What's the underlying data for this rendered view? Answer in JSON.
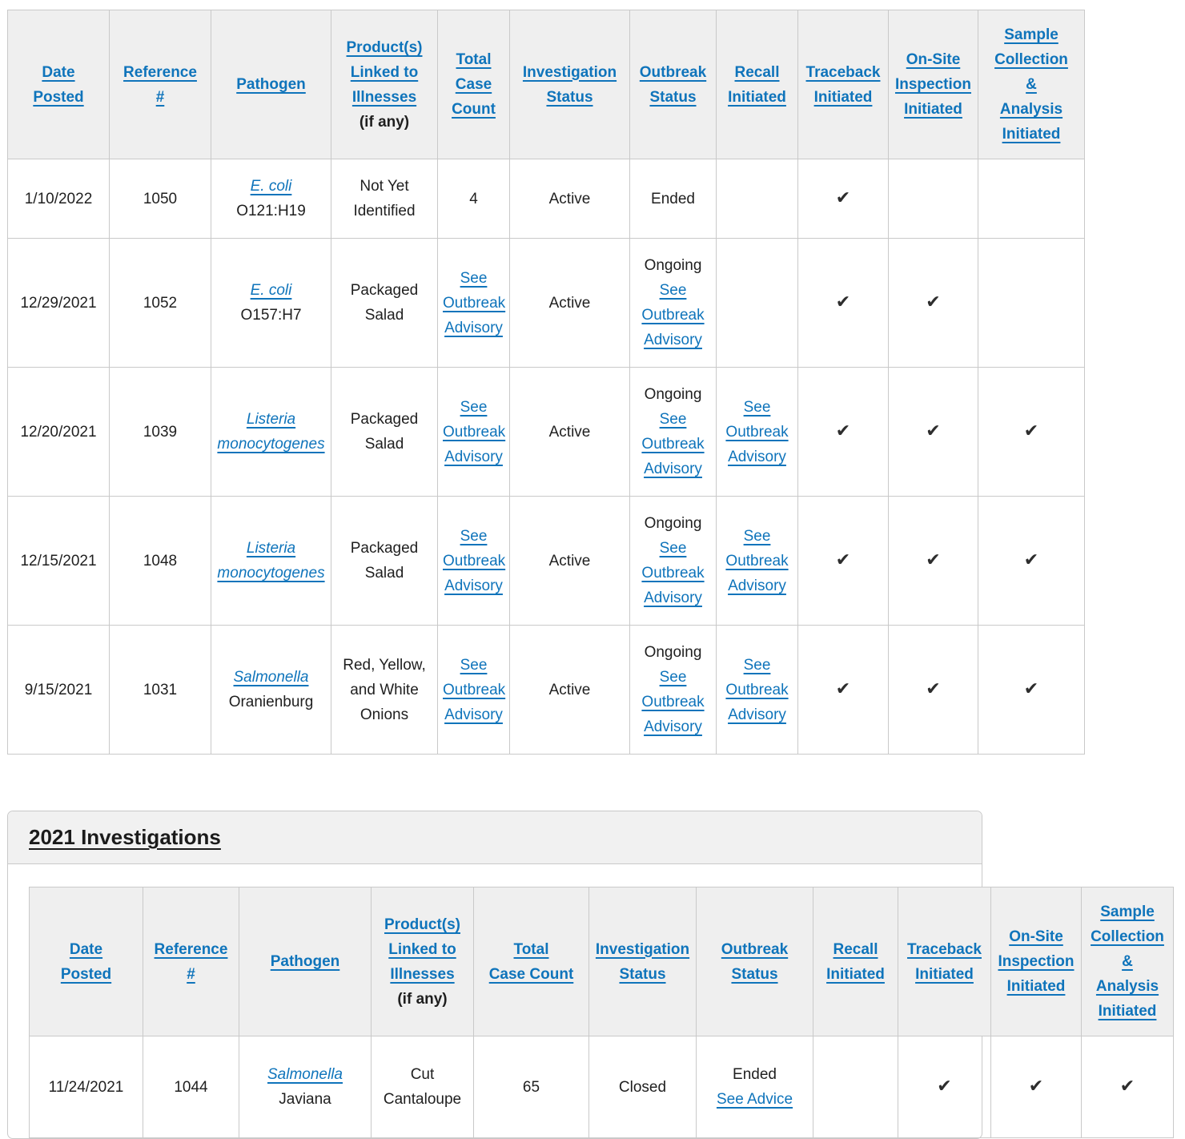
{
  "colors": {
    "link_blue": "#0f74bb",
    "header_background": "#efefef",
    "border": "#c9c9c9",
    "text": "#1f1f1f",
    "check": "#2d2d2d",
    "section_bar_background": "#f1f1f1"
  },
  "icons": {
    "check": "✔"
  },
  "column_headers": [
    {
      "key": "date-posted",
      "label": "Date\nPosted"
    },
    {
      "key": "reference-number",
      "label": "Reference\n#"
    },
    {
      "key": "pathogen",
      "label": "Pathogen"
    },
    {
      "key": "products-linked-to-illnesses",
      "label": "Product(s) Linked to Illnesses",
      "suffix": "(if any)"
    },
    {
      "key": "total-case-count",
      "label": "Total\nCase Count"
    },
    {
      "key": "investigation-status",
      "label": "Investigation Status"
    },
    {
      "key": "outbreak-status",
      "label": "Outbreak Status"
    },
    {
      "key": "recall-initiated",
      "label": "Recall Initiated"
    },
    {
      "key": "traceback-initiated",
      "label": "Traceback Initiated"
    },
    {
      "key": "on-site-inspection-initiated",
      "label": "On-Site Inspection Initiated"
    },
    {
      "key": "sample-collection-analysis-initiated",
      "label": "Sample Collection\n&\nAnalysis Initiated"
    }
  ],
  "top_table": {
    "rows": [
      {
        "cells": [
          {
            "text": "1/10/2022"
          },
          {
            "text": "1050"
          },
          {
            "parts": [
              {
                "text": "E. coli",
                "link": true,
                "italic": true
              },
              {
                "text": "O121:H19"
              }
            ]
          },
          {
            "text": "Not Yet Identified"
          },
          {
            "text": "4"
          },
          {
            "text": "Active"
          },
          {
            "text": "Ended"
          },
          {},
          {
            "check": true
          },
          {},
          {}
        ]
      },
      {
        "cells": [
          {
            "text": "12/29/2021"
          },
          {
            "text": "1052"
          },
          {
            "parts": [
              {
                "text": "E. coli",
                "link": true,
                "italic": true
              },
              {
                "text": "O157:H7"
              }
            ]
          },
          {
            "text": "Packaged Salad"
          },
          {
            "parts": [
              {
                "text": "See Outbreak Advisory",
                "link": true
              }
            ]
          },
          {
            "text": "Active"
          },
          {
            "parts": [
              {
                "text": "Ongoing"
              },
              {
                "text": "See Outbreak Advisory",
                "link": true
              }
            ]
          },
          {},
          {
            "check": true
          },
          {
            "check": true
          },
          {}
        ]
      },
      {
        "cells": [
          {
            "text": "12/20/2021"
          },
          {
            "text": "1039"
          },
          {
            "parts": [
              {
                "text": "Listeria monocytogenes",
                "link": true,
                "italic": true
              }
            ]
          },
          {
            "text": "Packaged Salad"
          },
          {
            "parts": [
              {
                "text": "See Outbreak Advisory",
                "link": true
              }
            ]
          },
          {
            "text": "Active"
          },
          {
            "parts": [
              {
                "text": "Ongoing"
              },
              {
                "text": "See Outbreak Advisory",
                "link": true
              }
            ]
          },
          {
            "parts": [
              {
                "text": "See Outbreak Advisory",
                "link": true
              }
            ]
          },
          {
            "check": true
          },
          {
            "check": true
          },
          {
            "check": true
          }
        ]
      },
      {
        "cells": [
          {
            "text": "12/15/2021"
          },
          {
            "text": "1048"
          },
          {
            "parts": [
              {
                "text": "Listeria monocytogenes",
                "link": true,
                "italic": true
              }
            ]
          },
          {
            "text": "Packaged Salad"
          },
          {
            "parts": [
              {
                "text": "See Outbreak Advisory",
                "link": true
              }
            ]
          },
          {
            "text": "Active"
          },
          {
            "parts": [
              {
                "text": "Ongoing"
              },
              {
                "text": "See Outbreak Advisory",
                "link": true
              }
            ]
          },
          {
            "parts": [
              {
                "text": "See Outbreak Advisory",
                "link": true
              }
            ]
          },
          {
            "check": true
          },
          {
            "check": true
          },
          {
            "check": true
          }
        ]
      },
      {
        "cells": [
          {
            "text": "9/15/2021"
          },
          {
            "text": "1031"
          },
          {
            "parts": [
              {
                "text": "Salmonella",
                "link": true,
                "italic": true
              },
              {
                "text": "Oranienburg"
              }
            ]
          },
          {
            "text": "Red, Yellow, and White Onions"
          },
          {
            "parts": [
              {
                "text": "See Outbreak Advisory",
                "link": true
              }
            ]
          },
          {
            "text": "Active"
          },
          {
            "parts": [
              {
                "text": "Ongoing"
              },
              {
                "text": "See Outbreak Advisory",
                "link": true
              }
            ]
          },
          {
            "parts": [
              {
                "text": "See Outbreak Advisory",
                "link": true
              }
            ]
          },
          {
            "check": true
          },
          {
            "check": true
          },
          {
            "check": true
          }
        ]
      }
    ]
  },
  "section_2021": {
    "heading": "2021 Investigations",
    "table": {
      "rows": [
        {
          "cells": [
            {
              "text": "11/24/2021"
            },
            {
              "text": "1044"
            },
            {
              "parts": [
                {
                  "text": "Salmonella",
                  "link": true,
                  "italic": true
                },
                {
                  "text": "Javiana"
                }
              ]
            },
            {
              "text": "Cut Cantaloupe"
            },
            {
              "text": "65"
            },
            {
              "text": "Closed"
            },
            {
              "parts": [
                {
                  "text": "Ended"
                },
                {
                  "text": "See Advice",
                  "link": true
                }
              ]
            },
            {},
            {
              "check": true
            },
            {
              "check": true
            },
            {
              "check": true
            }
          ]
        }
      ]
    }
  }
}
